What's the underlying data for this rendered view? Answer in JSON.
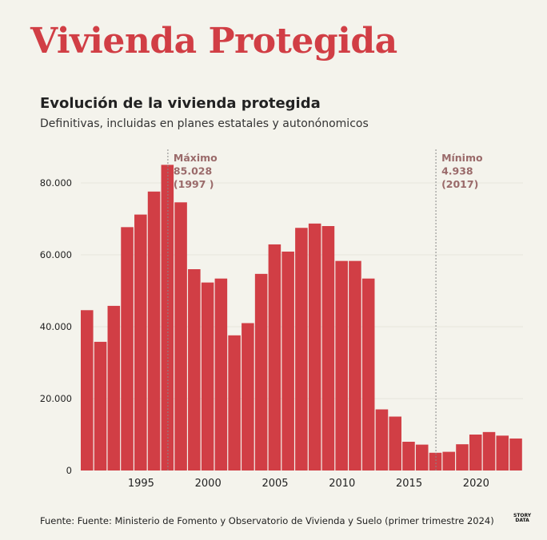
{
  "header": {
    "title": "Vivienda Protegida",
    "chart_title": "Evolución de la vivienda protegida",
    "chart_subtitle": "Definitivas, incluidas en planes estatales y autonónomicos"
  },
  "footer": {
    "source": "Fuente: Fuente: Ministerio de Fomento y Observatorio de Vivienda y Suelo (primer trimestre 2024)",
    "logo_top": "STORY",
    "logo_bottom": "DATA"
  },
  "colors": {
    "bar": "#d13e45",
    "title": "#d13e45",
    "annotation": "#9a6a6a",
    "grid": "#e6e4dc"
  },
  "chart_data": {
    "type": "bar",
    "x": [
      1991,
      1992,
      1993,
      1994,
      1995,
      1996,
      1997,
      1998,
      1999,
      2000,
      2001,
      2002,
      2003,
      2004,
      2005,
      2006,
      2007,
      2008,
      2009,
      2010,
      2011,
      2012,
      2013,
      2014,
      2015,
      2016,
      2017,
      2018,
      2019,
      2020,
      2021,
      2022,
      2023
    ],
    "values": [
      44600,
      35800,
      45800,
      67700,
      71200,
      77600,
      85028,
      74600,
      56000,
      52300,
      53400,
      37600,
      41000,
      54700,
      62900,
      60900,
      67500,
      68700,
      68000,
      58300,
      58300,
      53400,
      17000,
      15000,
      8000,
      7200,
      4938,
      5200,
      7300,
      10000,
      10700,
      9700,
      8900
    ],
    "ylim": [
      0,
      90000
    ],
    "yticks": [
      0,
      20000,
      40000,
      60000,
      80000
    ],
    "ytick_labels": [
      "0",
      "20.000",
      "40.000",
      "60.000",
      "80.000"
    ],
    "xticks": [
      1995,
      2000,
      2005,
      2010,
      2015,
      2020
    ],
    "xtick_labels": [
      "1995",
      "2000",
      "2005",
      "2010",
      "2015",
      "2020"
    ],
    "grid": true,
    "annotations": [
      {
        "x": 1997,
        "lines": [
          "Máximo",
          "85.028",
          "(1997 )"
        ]
      },
      {
        "x": 2017,
        "lines": [
          "Mínimo",
          "4.938",
          "(2017)"
        ]
      }
    ]
  }
}
